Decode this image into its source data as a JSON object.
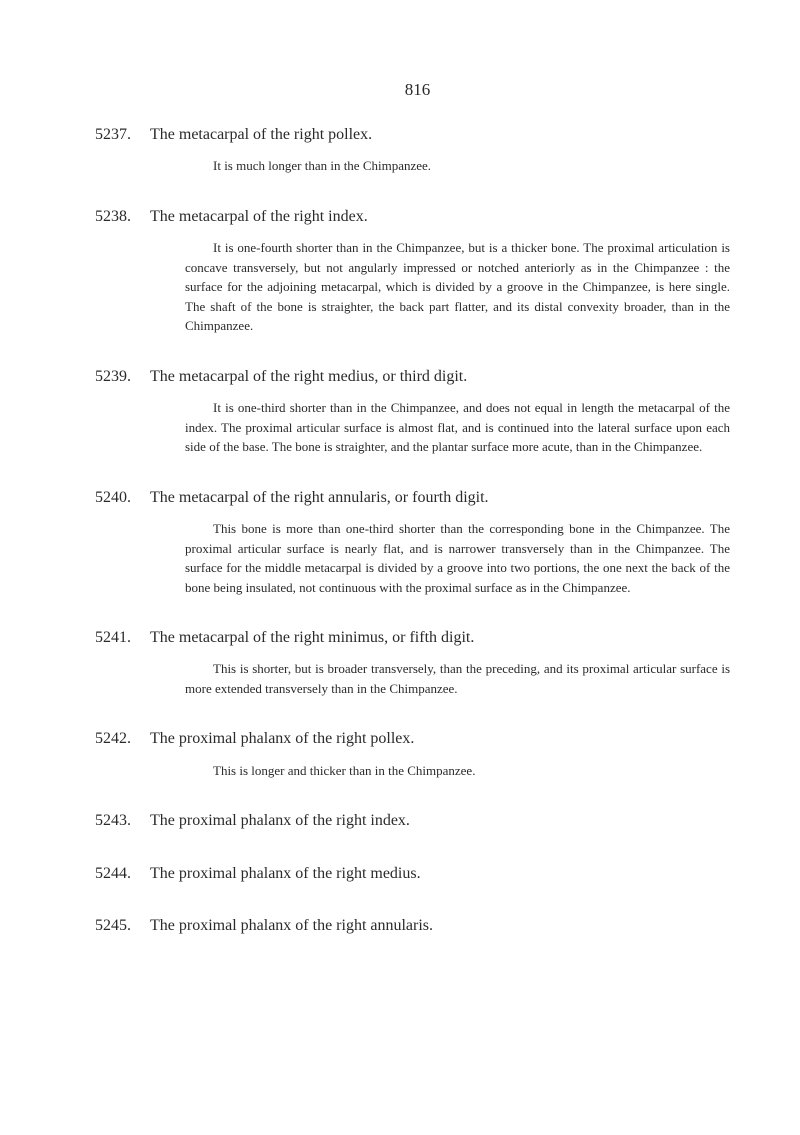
{
  "page_number": "816",
  "entries": [
    {
      "number": "5237.",
      "title": "The metacarpal of the right pollex.",
      "body": "It is much longer than in the Chimpanzee."
    },
    {
      "number": "5238.",
      "title": "The metacarpal of the right index.",
      "body": "It is one-fourth shorter than in the Chimpanzee, but is a thicker bone. The proximal articulation is concave transversely, but not angularly impressed or notched anteriorly as in the Chimpanzee : the surface for the adjoining metacarpal, which is divided by a groove in the Chimpanzee, is here single. The shaft of the bone is straighter, the back part flatter, and its distal convexity broader, than in the Chimpanzee."
    },
    {
      "number": "5239.",
      "title": "The metacarpal of the right medius, or third digit.",
      "body": "It is one-third shorter than in the Chimpanzee, and does not equal in length the metacarpal of the index. The proximal articular surface is almost flat, and is continued into the lateral surface upon each side of the base. The bone is straighter, and the plantar surface more acute, than in the Chimpanzee."
    },
    {
      "number": "5240.",
      "title": "The metacarpal of the right annularis, or fourth digit.",
      "body": "This bone is more than one-third shorter than the corresponding bone in the Chimpanzee. The proximal articular surface is nearly flat, and is narrower transversely than in the Chimpanzee. The surface for the middle metacarpal is divided by a groove into two portions, the one next the back of the bone being insulated, not continuous with the proximal surface as in the Chimpanzee."
    },
    {
      "number": "5241.",
      "title": "The metacarpal of the right minimus, or fifth digit.",
      "body": "This is shorter, but is broader transversely, than the preceding, and its proximal articular surface is more extended transversely than in the Chimpanzee."
    },
    {
      "number": "5242.",
      "title": "The proximal phalanx of the right pollex.",
      "body": "This is longer and thicker than in the Chimpanzee."
    },
    {
      "number": "5243.",
      "title": "The proximal phalanx of the right index.",
      "body": ""
    },
    {
      "number": "5244.",
      "title": "The proximal phalanx of the right medius.",
      "body": ""
    },
    {
      "number": "5245.",
      "title": "The proximal phalanx of the right annularis.",
      "body": ""
    }
  ]
}
